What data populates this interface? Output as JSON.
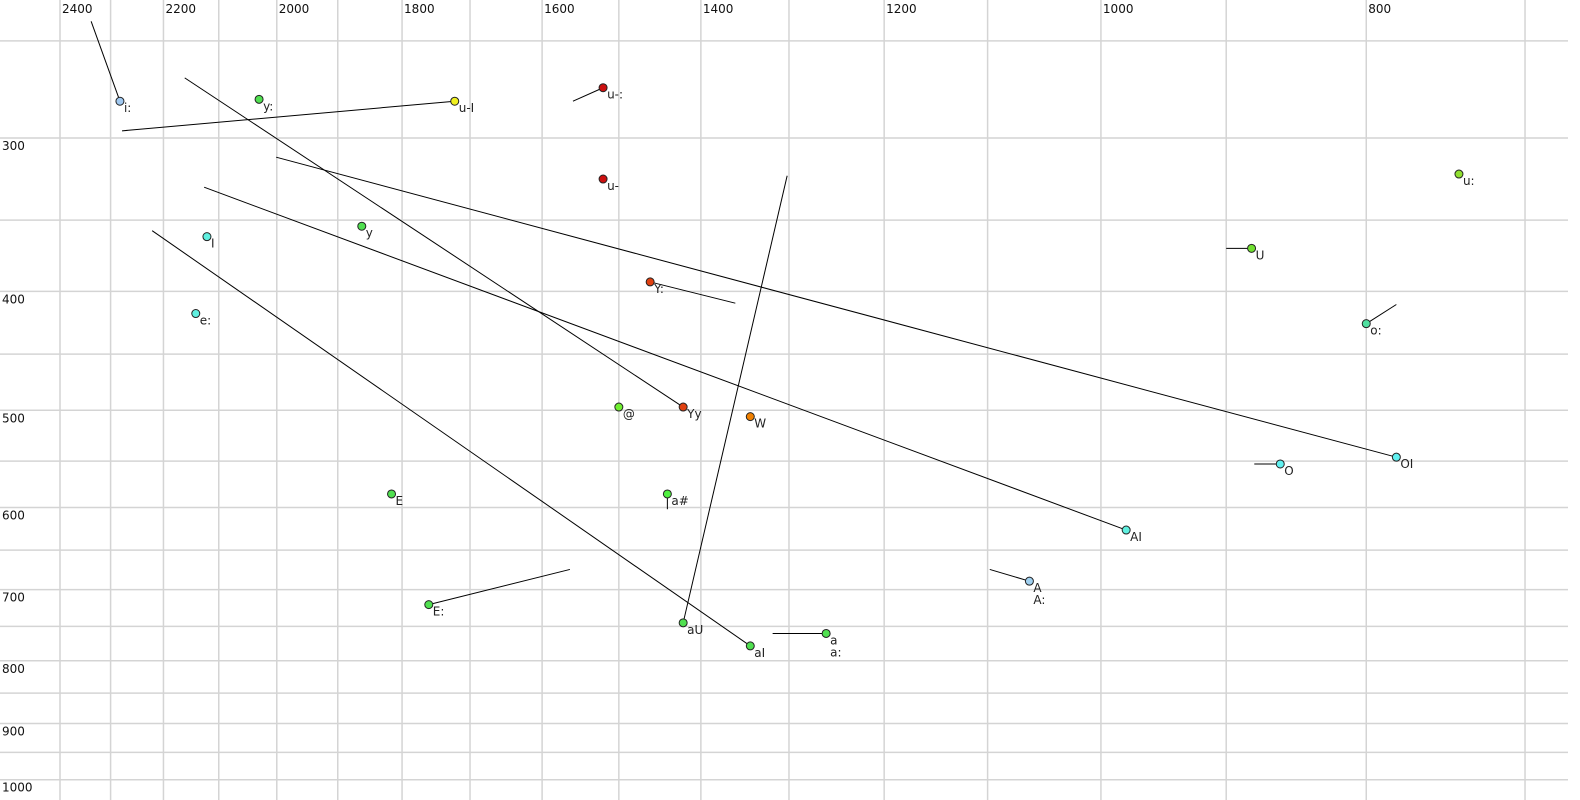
{
  "chart_data": {
    "type": "scatter",
    "title": "",
    "xlabel": "",
    "ylabel": "",
    "x_scale": "log",
    "y_scale": "log",
    "x_reversed": true,
    "y_reversed": true,
    "xlim": [
      2523,
      675
    ],
    "ylim": [
      232,
      1038
    ],
    "grid": true,
    "x_gridlines": [
      2400,
      2300,
      2200,
      2100,
      2000,
      1900,
      1800,
      1700,
      1600,
      1500,
      1400,
      1300,
      1200,
      1100,
      1000,
      900,
      800,
      700
    ],
    "y_gridlines": [
      250,
      300,
      350,
      400,
      450,
      500,
      550,
      600,
      650,
      700,
      750,
      800,
      850,
      900,
      950,
      1000
    ],
    "x_ticks": [
      "2400",
      "2200",
      "2000",
      "1800",
      "1600",
      "1400",
      "1200",
      "1000",
      "800"
    ],
    "y_ticks": [
      "300",
      "400",
      "500",
      "600",
      "700",
      "800",
      "900",
      "1000"
    ],
    "points": [
      {
        "labels": [
          "i:"
        ],
        "x": 2282,
        "y": 280,
        "color": "#a0c8f0",
        "trajectory_end": {
          "x": 2338,
          "y": 241
        }
      },
      {
        "labels": [
          "y:"
        ],
        "x": 2030,
        "y": 279,
        "color": "#50e050"
      },
      {
        "labels": [
          "u-I"
        ],
        "x": 1722,
        "y": 280,
        "color": "#f0f020",
        "trajectory_end": {
          "x": 2278,
          "y": 296
        }
      },
      {
        "labels": [
          "u-:"
        ],
        "x": 1520,
        "y": 273,
        "color": "#cc1010",
        "trajectory_end": {
          "x": 1559,
          "y": 280
        }
      },
      {
        "labels": [
          "u-"
        ],
        "x": 1520,
        "y": 324,
        "color": "#cc1010"
      },
      {
        "labels": [
          "u:"
        ],
        "x": 740,
        "y": 321,
        "color": "#90e030"
      },
      {
        "labels": [
          "I"
        ],
        "x": 2121,
        "y": 361,
        "color": "#60f0e0"
      },
      {
        "labels": [
          "y"
        ],
        "x": 1862,
        "y": 354,
        "color": "#50e050"
      },
      {
        "labels": [
          "e:"
        ],
        "x": 2141,
        "y": 417,
        "color": "#60f0e0"
      },
      {
        "labels": [
          "U"
        ],
        "x": 881,
        "y": 369,
        "color": "#70e030",
        "trajectory_end": {
          "x": 900,
          "y": 369
        }
      },
      {
        "labels": [
          "Y:"
        ],
        "x": 1461,
        "y": 393,
        "color": "#e04010",
        "trajectory_end": {
          "x": 1360,
          "y": 409
        }
      },
      {
        "labels": [
          "o:"
        ],
        "x": 800,
        "y": 425,
        "color": "#50e0a0",
        "trajectory_end": {
          "x": 780,
          "y": 410
        }
      },
      {
        "labels": [
          "@"
        ],
        "x": 1500,
        "y": 497,
        "color": "#70f030"
      },
      {
        "labels": [
          "Yy"
        ],
        "x": 1421,
        "y": 497,
        "color": "#e04010",
        "trajectory_end": {
          "x": 2161,
          "y": 268
        }
      },
      {
        "labels": [
          "W"
        ],
        "x": 1343,
        "y": 506,
        "color": "#f08000"
      },
      {
        "labels": [
          "OI"
        ],
        "x": 780,
        "y": 546,
        "color": "#60f0f0",
        "trajectory_end": {
          "x": 2001,
          "y": 311
        }
      },
      {
        "labels": [
          "O"
        ],
        "x": 860,
        "y": 553,
        "color": "#60f0f0",
        "trajectory_end": {
          "x": 879,
          "y": 553
        }
      },
      {
        "labels": [
          "E"
        ],
        "x": 1816,
        "y": 585,
        "color": "#50e050"
      },
      {
        "labels": [
          "a#"
        ],
        "x": 1440,
        "y": 585,
        "color": "#50f040",
        "trajectory_end": {
          "x": 1440,
          "y": 602
        }
      },
      {
        "labels": [
          "AI"
        ],
        "x": 979,
        "y": 626,
        "color": "#60f0e0",
        "trajectory_end": {
          "x": 2126,
          "y": 329
        }
      },
      {
        "labels": [
          "A",
          "A:"
        ],
        "x": 1062,
        "y": 689,
        "color": "#a0d0f0",
        "trajectory_end": {
          "x": 1098,
          "y": 674
        }
      },
      {
        "labels": [
          "E:"
        ],
        "x": 1760,
        "y": 720,
        "color": "#50e050",
        "trajectory_end": {
          "x": 1563,
          "y": 674
        }
      },
      {
        "labels": [
          "aU"
        ],
        "x": 1421,
        "y": 745,
        "color": "#50e050",
        "trajectory_end": {
          "x": 1302,
          "y": 322
        }
      },
      {
        "labels": [
          "aI"
        ],
        "x": 1343,
        "y": 778,
        "color": "#50e050",
        "trajectory_end": {
          "x": 2221,
          "y": 357
        }
      },
      {
        "labels": [
          "a",
          "a:"
        ],
        "x": 1260,
        "y": 760,
        "color": "#50e050",
        "trajectory_end": {
          "x": 1318,
          "y": 760
        }
      }
    ]
  }
}
